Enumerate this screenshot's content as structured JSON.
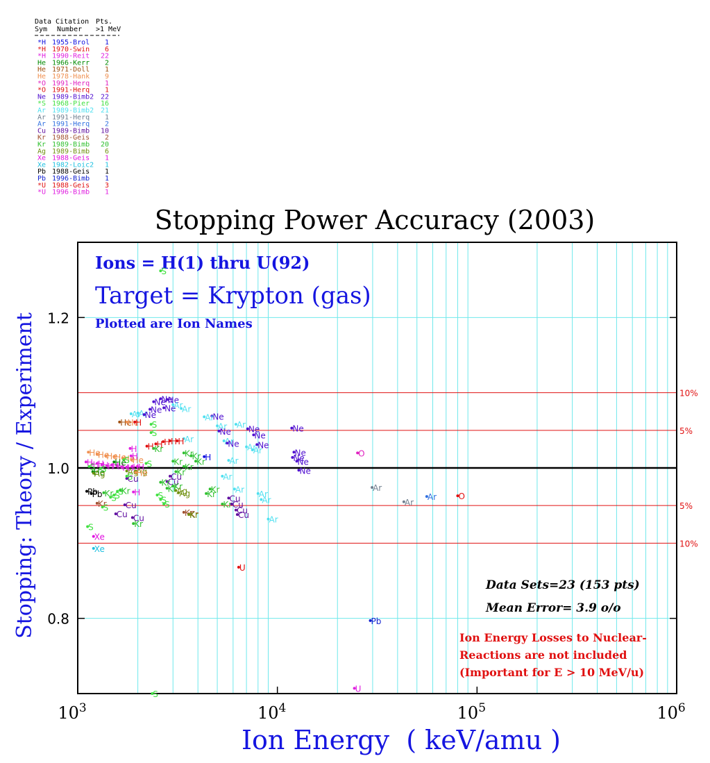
{
  "chart_data": {
    "type": "scatter",
    "title": "Stopping Power Accuracy (2003)",
    "xlabel": "Ion Energy  ( keV/amu )",
    "ylabel": "Stopping: Theory / Experiment",
    "x_scale": "log",
    "xlim": [
      1000,
      1000000
    ],
    "ylim": [
      0.7,
      1.3
    ],
    "grid": true,
    "x_ticks": [
      {
        "value": 1000,
        "base": "10",
        "exp": "3"
      },
      {
        "value": 10000,
        "base": "10",
        "exp": "4"
      },
      {
        "value": 100000,
        "base": "10",
        "exp": "5"
      },
      {
        "value": 1000000,
        "base": "10",
        "exp": "6"
      }
    ],
    "y_ticks": [
      {
        "value": 0.8,
        "label": "0.8"
      },
      {
        "value": 1.0,
        "label": "1.0"
      },
      {
        "value": 1.2,
        "label": "1.2"
      }
    ],
    "ref_lines": [
      {
        "value": 1.1,
        "label": "10%"
      },
      {
        "value": 1.05,
        "label": "5%"
      },
      {
        "value": 1.0,
        "label": ""
      },
      {
        "value": 0.95,
        "label": "5%"
      },
      {
        "value": 0.9,
        "label": "10%"
      }
    ],
    "annotations": {
      "ions": "Ions = H(1) thru U(92)",
      "target": "Target = Krypton (gas)",
      "plotted": "Plotted are Ion Names",
      "datasets": "Data Sets=23 (153 pts)",
      "mean_error": "Mean Error=  3.9 o/o",
      "note_lines": [
        "Ion Energy Losses to Nuclear-",
        "Reactions are not included",
        "(Important for E > 10 MeV/u)"
      ]
    },
    "legend": {
      "header1": [
        "Data",
        "Citation",
        "Pts."
      ],
      "header2": [
        "Sym",
        "Number",
        ">1 MeV"
      ],
      "entries": [
        {
          "sym": "*H",
          "citation": "1955-Brol",
          "pts": "1",
          "color": "#1010e0"
        },
        {
          "sym": "*H",
          "citation": "1970-Swin",
          "pts": "6",
          "color": "#e01010"
        },
        {
          "sym": "*H",
          "citation": "1990-Reit",
          "pts": "22",
          "color": "#e020e0"
        },
        {
          "sym": "He",
          "citation": "1966-Kerr",
          "pts": "2",
          "color": "#008a00"
        },
        {
          "sym": "He",
          "citation": "1971-Doll",
          "pts": "1",
          "color": "#a05010"
        },
        {
          "sym": "He",
          "citation": "1978-Hank",
          "pts": "9",
          "color": "#f09050"
        },
        {
          "sym": "*O",
          "citation": "1991-Herq",
          "pts": "1",
          "color": "#e020c0"
        },
        {
          "sym": "*O",
          "citation": "1991-Herq",
          "pts": "1",
          "color": "#e01010"
        },
        {
          "sym": "Ne",
          "citation": "1989-Bimb2",
          "pts": "22",
          "color": "#5010d0"
        },
        {
          "sym": "*S",
          "citation": "1968-Pier",
          "pts": "16",
          "color": "#40e040"
        },
        {
          "sym": "Ar",
          "citation": "1989-Bimb2",
          "pts": "21",
          "color": "#50e0f0"
        },
        {
          "sym": "Ar",
          "citation": "1991-Herq",
          "pts": "1",
          "color": "#708090"
        },
        {
          "sym": "Ar",
          "citation": "1991-Herq",
          "pts": "2",
          "color": "#3070e0"
        },
        {
          "sym": "Cu",
          "citation": "1989-Bimb",
          "pts": "10",
          "color": "#6010a0"
        },
        {
          "sym": "Kr",
          "citation": "1988-Geis",
          "pts": "2",
          "color": "#a05030"
        },
        {
          "sym": "Kr",
          "citation": "1989-Bimb",
          "pts": "20",
          "color": "#30c030"
        },
        {
          "sym": "Ag",
          "citation": "1989-Bimb",
          "pts": "6",
          "color": "#709010"
        },
        {
          "sym": "Xe",
          "citation": "1988-Geis",
          "pts": "1",
          "color": "#e010e0"
        },
        {
          "sym": "Xe",
          "citation": "1982-Loic2",
          "pts": "1",
          "color": "#20c0e0"
        },
        {
          "sym": "Pb",
          "citation": "1988-Geis",
          "pts": "1",
          "color": "#000000"
        },
        {
          "sym": "Pb",
          "citation": "1996-Bimb",
          "pts": "1",
          "color": "#1020d0"
        },
        {
          "sym": "*U",
          "citation": "1988-Geis",
          "pts": "3",
          "color": "#e01010"
        },
        {
          "sym": "*U",
          "citation": "1996-Bimb",
          "pts": "1",
          "color": "#e020e0"
        }
      ]
    },
    "points": [
      {
        "label": "S",
        "x": 2600,
        "y": 1.262,
        "color": "#40e040"
      },
      {
        "label": "Ne",
        "x": 2600,
        "y": 1.092,
        "color": "#5010d0"
      },
      {
        "label": "Ne",
        "x": 2800,
        "y": 1.091,
        "color": "#5010d0"
      },
      {
        "label": "Ne",
        "x": 2400,
        "y": 1.088,
        "color": "#5010d0"
      },
      {
        "label": "Ne",
        "x": 2700,
        "y": 1.08,
        "color": "#5010d0"
      },
      {
        "label": "Ne",
        "x": 2300,
        "y": 1.078,
        "color": "#5010d0"
      },
      {
        "label": "Ar",
        "x": 3000,
        "y": 1.084,
        "color": "#50e0f0"
      },
      {
        "label": "Ar",
        "x": 3300,
        "y": 1.079,
        "color": "#50e0f0"
      },
      {
        "label": "Ar",
        "x": 2000,
        "y": 1.073,
        "color": "#50e0f0"
      },
      {
        "label": "Ne",
        "x": 2150,
        "y": 1.071,
        "color": "#5010d0"
      },
      {
        "label": "Ar",
        "x": 1850,
        "y": 1.072,
        "color": "#50e0f0"
      },
      {
        "label": "Ne",
        "x": 4700,
        "y": 1.069,
        "color": "#5010d0"
      },
      {
        "label": "Ar",
        "x": 4300,
        "y": 1.068,
        "color": "#50e0f0"
      },
      {
        "label": "He",
        "x": 1620,
        "y": 1.061,
        "color": "#a05010"
      },
      {
        "label": "He",
        "x": 1760,
        "y": 1.061,
        "color": "#f09050"
      },
      {
        "label": "H",
        "x": 1930,
        "y": 1.061,
        "color": "#e01010"
      },
      {
        "label": "S",
        "x": 2330,
        "y": 1.058,
        "color": "#40e040"
      },
      {
        "label": "S",
        "x": 2330,
        "y": 1.047,
        "color": "#40e040"
      },
      {
        "label": "Ar",
        "x": 5000,
        "y": 1.056,
        "color": "#50e0f0"
      },
      {
        "label": "Ar",
        "x": 6200,
        "y": 1.058,
        "color": "#50e0f0"
      },
      {
        "label": "Ne",
        "x": 5100,
        "y": 1.049,
        "color": "#5010d0"
      },
      {
        "label": "Ne",
        "x": 7100,
        "y": 1.052,
        "color": "#5010d0"
      },
      {
        "label": "Ne",
        "x": 7600,
        "y": 1.044,
        "color": "#5010d0"
      },
      {
        "label": "Ne",
        "x": 11800,
        "y": 1.053,
        "color": "#5010d0"
      },
      {
        "label": "Ar",
        "x": 3400,
        "y": 1.039,
        "color": "#50e0f0"
      },
      {
        "label": "Ar",
        "x": 5400,
        "y": 1.036,
        "color": "#50e0f0"
      },
      {
        "label": "Ne",
        "x": 5600,
        "y": 1.033,
        "color": "#5010d0"
      },
      {
        "label": "Ne",
        "x": 7900,
        "y": 1.031,
        "color": "#5010d0"
      },
      {
        "label": "Ar",
        "x": 7000,
        "y": 1.028,
        "color": "#50e0f0"
      },
      {
        "label": "Ar",
        "x": 7500,
        "y": 1.024,
        "color": "#50e0f0"
      },
      {
        "label": "Ne",
        "x": 12100,
        "y": 1.021,
        "color": "#5010d0"
      },
      {
        "label": "Ne",
        "x": 11900,
        "y": 1.014,
        "color": "#5010d0"
      },
      {
        "label": "Ne",
        "x": 12500,
        "y": 1.009,
        "color": "#5010d0"
      },
      {
        "label": "Ne",
        "x": 12800,
        "y": 0.997,
        "color": "#5010d0"
      },
      {
        "label": "H",
        "x": 2220,
        "y": 1.029,
        "color": "#e01010"
      },
      {
        "label": "H",
        "x": 2460,
        "y": 1.032,
        "color": "#e01010"
      },
      {
        "label": "H",
        "x": 2680,
        "y": 1.035,
        "color": "#e01010"
      },
      {
        "label": "H",
        "x": 2900,
        "y": 1.036,
        "color": "#e01010"
      },
      {
        "label": "H",
        "x": 3150,
        "y": 1.036,
        "color": "#e01010"
      },
      {
        "label": "Kr",
        "x": 2400,
        "y": 1.026,
        "color": "#30c030"
      },
      {
        "label": "H",
        "x": 1830,
        "y": 1.026,
        "color": "#e020e0"
      },
      {
        "label": "H",
        "x": 4300,
        "y": 1.015,
        "color": "#1010e0"
      },
      {
        "label": "Ar",
        "x": 5700,
        "y": 1.01,
        "color": "#50e0f0"
      },
      {
        "label": "Kr",
        "x": 3400,
        "y": 1.02,
        "color": "#30c030"
      },
      {
        "label": "Kr",
        "x": 3700,
        "y": 1.016,
        "color": "#30c030"
      },
      {
        "label": "Kr",
        "x": 3000,
        "y": 1.009,
        "color": "#30c030"
      },
      {
        "label": "Kr",
        "x": 3900,
        "y": 1.009,
        "color": "#30c030"
      },
      {
        "label": "Kr",
        "x": 3400,
        "y": 1.002,
        "color": "#30c030"
      },
      {
        "label": "O",
        "x": 25200,
        "y": 1.02,
        "color": "#e020c0"
      },
      {
        "label": "He",
        "x": 1130,
        "y": 1.021,
        "color": "#f09050"
      },
      {
        "label": "He",
        "x": 1250,
        "y": 1.018,
        "color": "#f09050"
      },
      {
        "label": "He",
        "x": 1380,
        "y": 1.016,
        "color": "#f09050"
      },
      {
        "label": "He",
        "x": 1520,
        "y": 1.015,
        "color": "#f09050"
      },
      {
        "label": "He",
        "x": 1680,
        "y": 1.013,
        "color": "#f09050"
      },
      {
        "label": "He",
        "x": 1860,
        "y": 1.011,
        "color": "#f09050"
      },
      {
        "label": "H",
        "x": 1850,
        "y": 1.016,
        "color": "#e020e0"
      },
      {
        "label": "S",
        "x": 1700,
        "y": 1.011,
        "color": "#40e040"
      },
      {
        "label": "H",
        "x": 1100,
        "y": 1.008,
        "color": "#e020e0"
      },
      {
        "label": "H",
        "x": 1180,
        "y": 1.005,
        "color": "#e020e0"
      },
      {
        "label": "H",
        "x": 1250,
        "y": 1.006,
        "color": "#e020e0"
      },
      {
        "label": "H",
        "x": 1320,
        "y": 1.004,
        "color": "#e020e0"
      },
      {
        "label": "H",
        "x": 1400,
        "y": 1.003,
        "color": "#e020e0"
      },
      {
        "label": "H",
        "x": 1480,
        "y": 1.004,
        "color": "#e020e0"
      },
      {
        "label": "H",
        "x": 1570,
        "y": 1.003,
        "color": "#e020e0"
      },
      {
        "label": "H",
        "x": 1660,
        "y": 1.001,
        "color": "#e020e0"
      },
      {
        "label": "H",
        "x": 1760,
        "y": 1.001,
        "color": "#e020e0"
      },
      {
        "label": "H",
        "x": 1870,
        "y": 1.002,
        "color": "#e020e0"
      },
      {
        "label": "H",
        "x": 1990,
        "y": 1.002,
        "color": "#e020e0"
      },
      {
        "label": "S",
        "x": 2200,
        "y": 1.006,
        "color": "#40e040"
      },
      {
        "label": "S",
        "x": 1140,
        "y": 1.002,
        "color": "#40e040"
      },
      {
        "label": "S",
        "x": 1300,
        "y": 0.999,
        "color": "#40e040"
      },
      {
        "label": "He",
        "x": 1190,
        "y": 0.995,
        "color": "#008a00"
      },
      {
        "label": "He",
        "x": 1520,
        "y": 1.008,
        "color": "#008a00"
      },
      {
        "label": "Ag",
        "x": 1200,
        "y": 0.993,
        "color": "#709010"
      },
      {
        "label": "Ag",
        "x": 1760,
        "y": 0.996,
        "color": "#709010"
      },
      {
        "label": "Ag",
        "x": 1950,
        "y": 0.996,
        "color": "#709010"
      },
      {
        "label": "He",
        "x": 1950,
        "y": 0.994,
        "color": "#f09050"
      },
      {
        "label": "Cu",
        "x": 1760,
        "y": 0.986,
        "color": "#6010a0"
      },
      {
        "label": "S",
        "x": 1760,
        "y": 0.989,
        "color": "#40e040"
      },
      {
        "label": "Kr",
        "x": 3100,
        "y": 0.995,
        "color": "#30c030"
      },
      {
        "label": "Cu",
        "x": 2900,
        "y": 0.989,
        "color": "#6010a0"
      },
      {
        "label": "Cu",
        "x": 2800,
        "y": 0.982,
        "color": "#6010a0"
      },
      {
        "label": "Kr",
        "x": 2600,
        "y": 0.981,
        "color": "#30c030"
      },
      {
        "label": "Kr",
        "x": 3000,
        "y": 0.976,
        "color": "#30c030"
      },
      {
        "label": "Kr",
        "x": 2800,
        "y": 0.973,
        "color": "#30c030"
      },
      {
        "label": "Ag",
        "x": 3100,
        "y": 0.97,
        "color": "#709010"
      },
      {
        "label": "Ag",
        "x": 3200,
        "y": 0.967,
        "color": "#709010"
      },
      {
        "label": "Kr",
        "x": 4600,
        "y": 0.972,
        "color": "#30c030"
      },
      {
        "label": "Kr",
        "x": 4400,
        "y": 0.966,
        "color": "#30c030"
      },
      {
        "label": "Ar",
        "x": 5300,
        "y": 0.989,
        "color": "#50e0f0"
      },
      {
        "label": "Ar",
        "x": 6100,
        "y": 0.972,
        "color": "#50e0f0"
      },
      {
        "label": "Ar",
        "x": 8000,
        "y": 0.966,
        "color": "#50e0f0"
      },
      {
        "label": "Ar",
        "x": 8300,
        "y": 0.958,
        "color": "#50e0f0"
      },
      {
        "label": "Ar",
        "x": 9000,
        "y": 0.932,
        "color": "#50e0f0"
      },
      {
        "label": "Ar",
        "x": 29800,
        "y": 0.974,
        "color": "#708090"
      },
      {
        "label": "Ar",
        "x": 43000,
        "y": 0.955,
        "color": "#708090"
      },
      {
        "label": "Ar",
        "x": 56000,
        "y": 0.962,
        "color": "#3070e0"
      },
      {
        "label": "O",
        "x": 80000,
        "y": 0.963,
        "color": "#e01010"
      },
      {
        "label": "Pb",
        "x": 1110,
        "y": 0.969,
        "color": "#000000"
      },
      {
        "label": "Pb",
        "x": 1170,
        "y": 0.966,
        "color": "#000000"
      },
      {
        "label": "Kr",
        "x": 1350,
        "y": 0.967,
        "color": "#30c030"
      },
      {
        "label": "S",
        "x": 1520,
        "y": 0.964,
        "color": "#40e040"
      },
      {
        "label": "Kr",
        "x": 1640,
        "y": 0.97,
        "color": "#30c030"
      },
      {
        "label": "S",
        "x": 1460,
        "y": 0.961,
        "color": "#40e040"
      },
      {
        "label": "S",
        "x": 1580,
        "y": 0.969,
        "color": "#40e040"
      },
      {
        "label": "H",
        "x": 1900,
        "y": 0.968,
        "color": "#e020e0"
      },
      {
        "label": "S",
        "x": 2500,
        "y": 0.964,
        "color": "#40e040"
      },
      {
        "label": "S",
        "x": 2600,
        "y": 0.958,
        "color": "#40e040"
      },
      {
        "label": "S",
        "x": 2700,
        "y": 0.952,
        "color": "#40e040"
      },
      {
        "label": "Kr",
        "x": 1250,
        "y": 0.953,
        "color": "#a05030"
      },
      {
        "label": "S",
        "x": 1330,
        "y": 0.948,
        "color": "#40e040"
      },
      {
        "label": "Cu",
        "x": 1720,
        "y": 0.951,
        "color": "#6010a0"
      },
      {
        "label": "Kr",
        "x": 5300,
        "y": 0.952,
        "color": "#30c030"
      },
      {
        "label": "Cu",
        "x": 5700,
        "y": 0.96,
        "color": "#6010a0"
      },
      {
        "label": "Cu",
        "x": 5900,
        "y": 0.952,
        "color": "#6010a0"
      },
      {
        "label": "Cu",
        "x": 6200,
        "y": 0.944,
        "color": "#6010a0"
      },
      {
        "label": "Cu",
        "x": 6300,
        "y": 0.938,
        "color": "#6010a0"
      },
      {
        "label": "Cu",
        "x": 1550,
        "y": 0.939,
        "color": "#6010a0"
      },
      {
        "label": "Cu",
        "x": 1880,
        "y": 0.934,
        "color": "#6010a0"
      },
      {
        "label": "Kr",
        "x": 3400,
        "y": 0.941,
        "color": "#a05030"
      },
      {
        "label": "Kr",
        "x": 3600,
        "y": 0.939,
        "color": "#a05030"
      },
      {
        "label": "Kr",
        "x": 3600,
        "y": 0.938,
        "color": "#709010"
      },
      {
        "label": "Kr",
        "x": 1900,
        "y": 0.926,
        "color": "#30c030"
      },
      {
        "label": "S",
        "x": 1120,
        "y": 0.922,
        "color": "#40e040"
      },
      {
        "label": "Xe",
        "x": 1200,
        "y": 0.909,
        "color": "#e010e0"
      },
      {
        "label": "Xe",
        "x": 1200,
        "y": 0.893,
        "color": "#20c0e0"
      },
      {
        "label": "U",
        "x": 6400,
        "y": 0.868,
        "color": "#e01010"
      },
      {
        "label": "Pb",
        "x": 29200,
        "y": 0.797,
        "color": "#1020d0"
      },
      {
        "label": "U",
        "x": 24300,
        "y": 0.707,
        "color": "#e020e0"
      },
      {
        "label": "S",
        "x": 2360,
        "y": 0.7,
        "color": "#40e040"
      }
    ]
  }
}
